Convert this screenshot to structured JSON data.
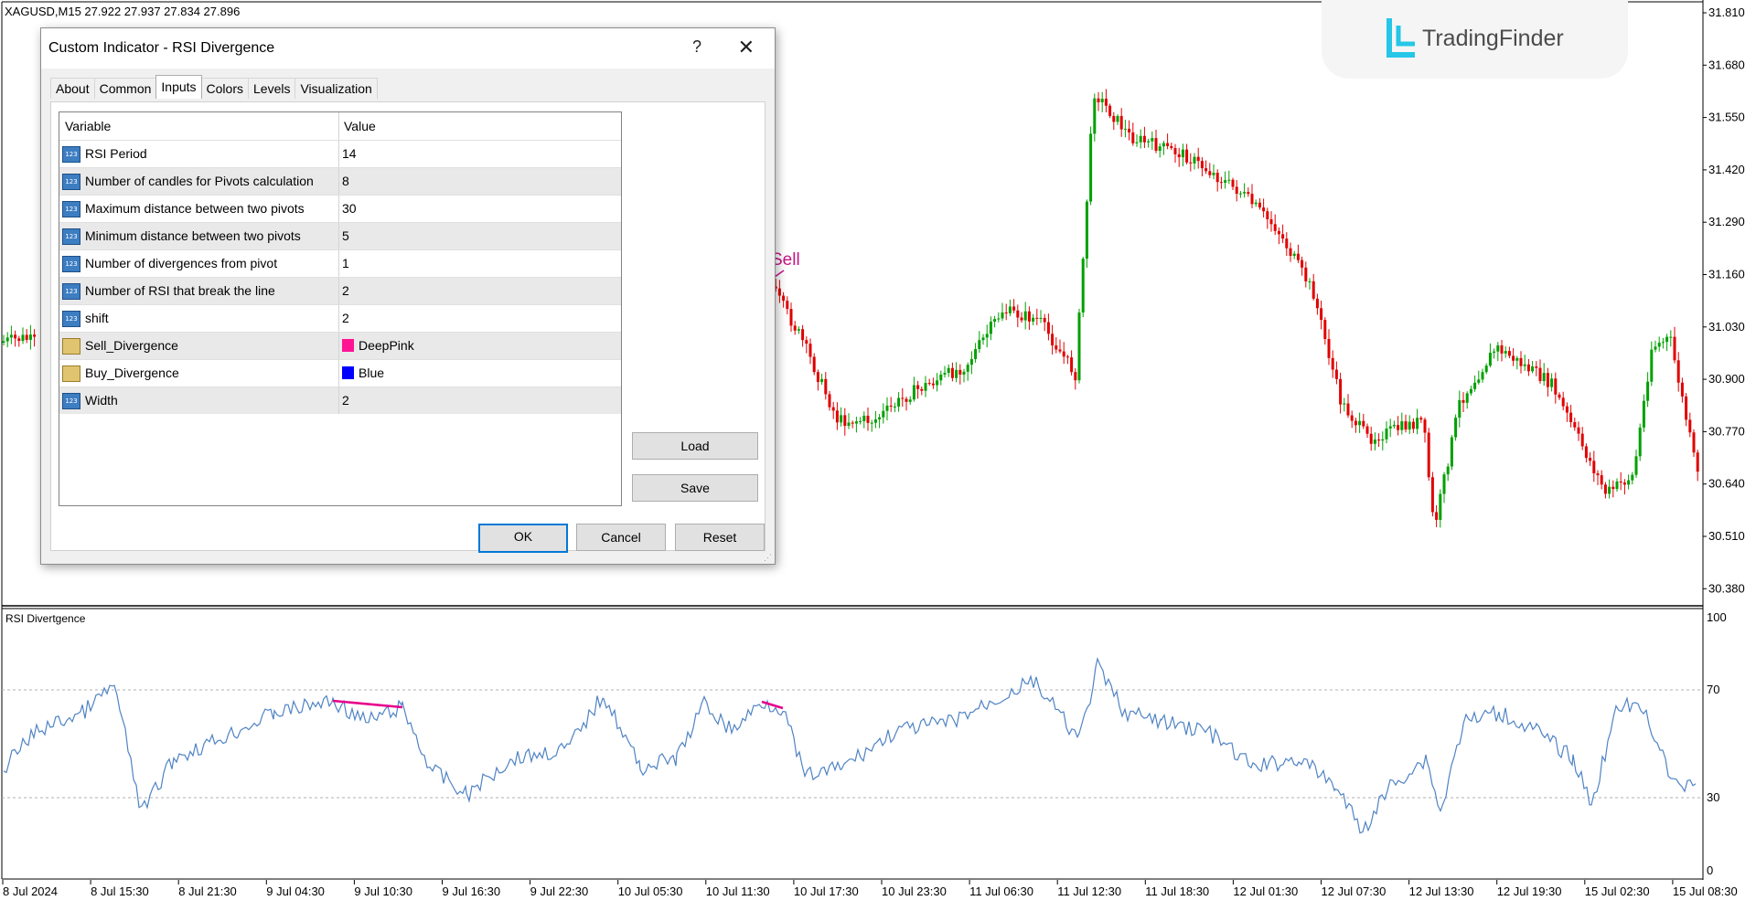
{
  "symbol_header": "XAGUSD,M15  27.922 27.937 27.834 27.896",
  "brand": {
    "name": "TradingFinder",
    "logo_icon": "tradingfinder-logo-icon",
    "accent": "#25c6e8"
  },
  "chart": {
    "price_axis": [
      "31.810",
      "31.680",
      "31.550",
      "31.420",
      "31.290",
      "31.160",
      "31.030",
      "30.900",
      "30.770",
      "30.640",
      "30.510",
      "30.380"
    ],
    "signal_label": "Sell",
    "signal_color": "#c71585",
    "bull_color": "#00a000",
    "bear_color": "#e00000"
  },
  "indicator_window": {
    "label": "RSI Divertgence",
    "levels": [
      "100",
      "70",
      "30",
      "0"
    ],
    "line_color": "#4f83c4",
    "divergence_color": "#e6008a"
  },
  "time_axis": [
    "8 Jul 2024",
    "8 Jul 15:30",
    "8 Jul 21:30",
    "9 Jul 04:30",
    "9 Jul 10:30",
    "9 Jul 16:30",
    "9 Jul 22:30",
    "10 Jul 05:30",
    "10 Jul 11:30",
    "10 Jul 17:30",
    "10 Jul 23:30",
    "11 Jul 06:30",
    "11 Jul 12:30",
    "11 Jul 18:30",
    "12 Jul 01:30",
    "12 Jul 07:30",
    "12 Jul 13:30",
    "12 Jul 19:30",
    "15 Jul 02:30",
    "15 Jul 08:30"
  ],
  "dialog": {
    "title": "Custom Indicator - RSI Divergence",
    "help": "?",
    "close": "✕",
    "tabs": [
      "About",
      "Common",
      "Inputs",
      "Colors",
      "Levels",
      "Visualization"
    ],
    "active_tab": "Inputs",
    "headers": {
      "variable": "Variable",
      "value": "Value"
    },
    "rows": [
      {
        "name": "RSI Period",
        "value": "14",
        "type": "number"
      },
      {
        "name": "Number of candles for Pivots calculation",
        "value": "8",
        "type": "number"
      },
      {
        "name": "Maximum distance between two pivots",
        "value": "30",
        "type": "number"
      },
      {
        "name": "Minimum distance between two pivots",
        "value": "5",
        "type": "number"
      },
      {
        "name": "Number of divergences from pivot",
        "value": "1",
        "type": "number"
      },
      {
        "name": "Number of RSI that break the line",
        "value": "2",
        "type": "number"
      },
      {
        "name": "shift",
        "value": "2",
        "type": "number"
      },
      {
        "name": "Sell_Divergence",
        "value": "DeepPink",
        "type": "color",
        "swatch": "#ff1493"
      },
      {
        "name": "Buy_Divergence",
        "value": "Blue",
        "type": "color",
        "swatch": "#0000ff"
      },
      {
        "name": "Width",
        "value": "2",
        "type": "number"
      }
    ],
    "number_icon_text": "123",
    "buttons": {
      "load": "Load",
      "save": "Save",
      "ok": "OK",
      "cancel": "Cancel",
      "reset": "Reset"
    }
  }
}
